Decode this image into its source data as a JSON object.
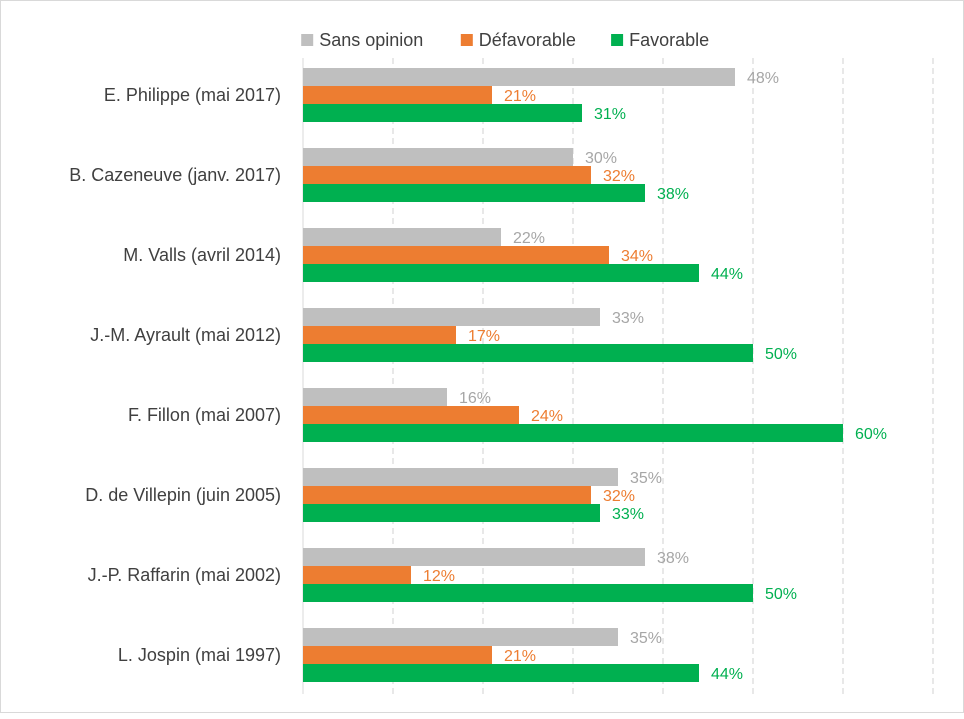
{
  "chart_data": {
    "type": "bar",
    "orientation": "horizontal",
    "categories": [
      "E. Philippe (mai 2017)",
      "B. Cazeneuve (janv. 2017)",
      "M. Valls (avril 2014)",
      "J.-M. Ayrault (mai 2012)",
      "F. Fillon (mai 2007)",
      "D. de Villepin (juin 2005)",
      "J.-P. Raffarin (mai 2002)",
      "L. Jospin (mai 1997)"
    ],
    "series": [
      {
        "name": "Sans opinion",
        "color": "#bfbfbf",
        "values": [
          48,
          30,
          22,
          33,
          16,
          35,
          38,
          35
        ]
      },
      {
        "name": "Défavorable",
        "color": "#ed7d31",
        "values": [
          21,
          32,
          34,
          17,
          24,
          32,
          12,
          21
        ]
      },
      {
        "name": "Favorable",
        "color": "#00b050",
        "values": [
          31,
          38,
          44,
          50,
          60,
          33,
          50,
          44
        ]
      }
    ],
    "value_suffix": "%",
    "xlim": [
      0,
      70
    ],
    "grid": true,
    "grid_style": "dashed",
    "legend_position": "top",
    "title": "",
    "xlabel": "",
    "ylabel": ""
  }
}
